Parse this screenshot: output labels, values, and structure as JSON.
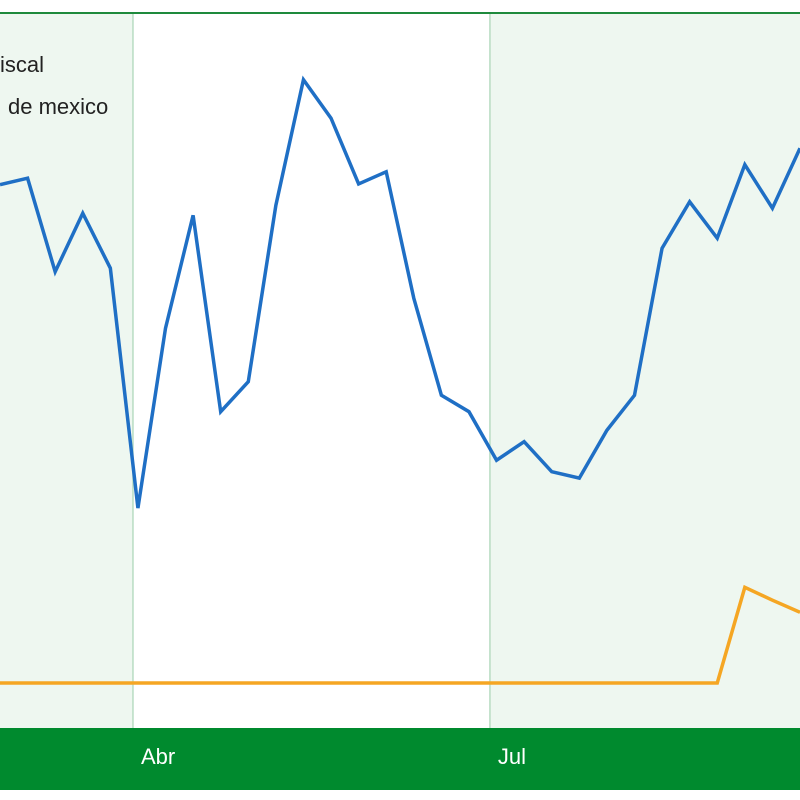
{
  "chart_data": {
    "type": "line",
    "x": [
      0,
      1,
      2,
      3,
      4,
      5,
      6,
      7,
      8,
      9,
      10,
      11,
      12,
      13,
      14,
      15,
      16,
      17,
      18,
      19,
      20,
      21,
      22,
      23,
      24,
      25,
      26,
      27,
      28,
      29
    ],
    "xlim": [
      0,
      29
    ],
    "xticks": [
      {
        "value": 4.82,
        "label": "Abr"
      },
      {
        "value": 17.76,
        "label": "Jul"
      }
    ],
    "ylim": [
      0,
      100
    ],
    "series": [
      {
        "name": "iscal",
        "color": "#1f6fc5",
        "values": [
          76.1,
          77.0,
          63.9,
          72.1,
          64.4,
          30.8,
          56.0,
          71.8,
          44.3,
          48.5,
          73.2,
          90.8,
          85.4,
          76.2,
          77.9,
          60.2,
          46.6,
          44.3,
          37.5,
          40.1,
          35.9,
          35.0,
          41.7,
          46.6,
          67.2,
          73.7,
          68.6,
          78.9,
          72.8,
          81.2
        ]
      },
      {
        "name": "de mexico",
        "color": "#f5a623",
        "values": [
          6.3,
          6.3,
          6.3,
          6.3,
          6.3,
          6.3,
          6.3,
          6.3,
          6.3,
          6.3,
          6.3,
          6.3,
          6.3,
          6.3,
          6.3,
          6.3,
          6.3,
          6.3,
          6.3,
          6.3,
          6.3,
          6.3,
          6.3,
          6.3,
          6.3,
          6.3,
          6.3,
          19.7,
          17.9,
          16.2
        ]
      }
    ]
  }
}
